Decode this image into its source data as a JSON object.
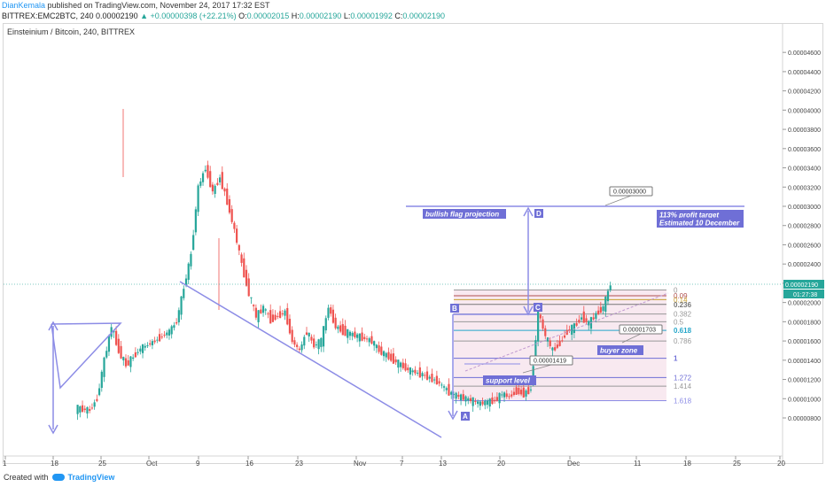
{
  "header": {
    "author": "DianKemala",
    "published": "published on TradingView.com, November 24, 2017 17:32 EST",
    "symbol": "BITTREX:EMC2BTC, 240",
    "last": "0.00002190",
    "change": "▲ +0.00000398 (+22.21%)",
    "o_label": "O:",
    "o_value": "0.00002015",
    "h_label": "H:",
    "h_value": "0.00002190",
    "l_label": "L:",
    "l_value": "0.00001992",
    "c_label": "C:",
    "c_value": "0.00002190"
  },
  "chart_title": "Einsteinium / Bitcoin, 240, BITTREX",
  "footer": {
    "created": "Created with",
    "brand": "TradingView"
  },
  "colors": {
    "up": "#26a69a",
    "down": "#ef5350",
    "drawing": "#8c8ce6",
    "zone": "#f2d7e4",
    "price_line": "#26a69a",
    "label_bg": "#6f6fd6"
  },
  "chart_data": {
    "type": "candlestick",
    "ylim": [
      6.8e-06,
      4.7e-06
    ],
    "y_ticks": [
      "0.00000800",
      "0.00001000",
      "0.00001200",
      "0.00001400",
      "0.00001600",
      "0.00001800",
      "0.00002000",
      "0.00002200",
      "0.00002400",
      "0.00002600",
      "0.00002800",
      "0.00003000",
      "0.00003200",
      "0.00003400",
      "0.00003600",
      "0.00003800",
      "0.00004000",
      "0.00004200",
      "0.00004400",
      "0.00004600"
    ],
    "y_tick_values": [
      8e-06,
      1e-05,
      1.2e-05,
      1.4e-05,
      1.6e-05,
      1.8e-05,
      2e-05,
      2.2e-05,
      2.4e-05,
      2.6e-05,
      2.8e-05,
      3e-05,
      3.2e-05,
      3.4e-05,
      3.6e-05,
      3.8e-05,
      4e-05,
      4.2e-05,
      4.4e-05,
      4.6e-05
    ],
    "x_ticks": [
      "1",
      "18",
      "25",
      "Oct",
      "9",
      "16",
      "23",
      "Nov",
      "7",
      "13",
      "20",
      "Dec",
      "11",
      "18",
      "25",
      "20"
    ],
    "current_price": "0.00002190",
    "countdown": "01:27:38",
    "close_path": [
      [
        "2017-09-11",
        9e-06
      ],
      [
        "2017-09-13",
        8.8e-06
      ],
      [
        "2017-09-14",
        1e-05
      ],
      [
        "2017-09-15",
        1.4e-05
      ],
      [
        "2017-09-16",
        1.75e-05
      ],
      [
        "2017-09-17",
        1.5e-05
      ],
      [
        "2017-09-18",
        1.35e-05
      ],
      [
        "2017-09-20",
        1.52e-05
      ],
      [
        "2017-09-22",
        1.6e-05
      ],
      [
        "2017-09-24",
        1.7e-05
      ],
      [
        "2017-09-25",
        1.8e-05
      ],
      [
        "2017-09-26",
        2.15e-05
      ],
      [
        "2017-09-27",
        2.5e-05
      ],
      [
        "2017-09-28",
        3.2e-05
      ],
      [
        "2017-09-29",
        3.4e-05
      ],
      [
        "2017-09-30",
        3.15e-05
      ],
      [
        "2017-10-01",
        3.3e-05
      ],
      [
        "2017-10-02",
        3.05e-05
      ],
      [
        "2017-10-03",
        2.75e-05
      ],
      [
        "2017-10-04",
        2.4e-05
      ],
      [
        "2017-10-05",
        2.1e-05
      ],
      [
        "2017-10-06",
        1.85e-05
      ],
      [
        "2017-10-07",
        1.95e-05
      ],
      [
        "2017-10-08",
        1.82e-05
      ],
      [
        "2017-10-10",
        1.9e-05
      ],
      [
        "2017-10-11",
        1.6e-05
      ],
      [
        "2017-10-12",
        1.5e-05
      ],
      [
        "2017-10-13",
        1.7e-05
      ],
      [
        "2017-10-14",
        1.55e-05
      ],
      [
        "2017-10-15",
        1.6e-05
      ],
      [
        "2017-10-16",
        1.95e-05
      ],
      [
        "2017-10-17",
        1.75e-05
      ],
      [
        "2017-10-18",
        1.7e-05
      ],
      [
        "2017-10-20",
        1.65e-05
      ],
      [
        "2017-10-22",
        1.6e-05
      ],
      [
        "2017-10-23",
        1.5e-05
      ],
      [
        "2017-10-25",
        1.4e-05
      ],
      [
        "2017-10-27",
        1.3e-05
      ],
      [
        "2017-10-29",
        1.25e-05
      ],
      [
        "2017-10-31",
        1.18e-05
      ],
      [
        "2017-11-02",
        1.05e-05
      ],
      [
        "2017-11-04",
        1e-05
      ],
      [
        "2017-11-06",
        9.5e-06
      ],
      [
        "2017-11-08",
        9.8e-06
      ],
      [
        "2017-11-09",
        1.05e-05
      ],
      [
        "2017-11-10",
        1.02e-05
      ],
      [
        "2017-11-11",
        1.08e-05
      ],
      [
        "2017-11-12",
        1.05e-05
      ],
      [
        "2017-11-13",
        1.1e-05
      ],
      [
        "2017-11-14",
        1.9e-05
      ],
      [
        "2017-11-15",
        1.65e-05
      ],
      [
        "2017-11-16",
        1.5e-05
      ],
      [
        "2017-11-17",
        1.58e-05
      ],
      [
        "2017-11-18",
        1.7e-05
      ],
      [
        "2017-11-19",
        1.75e-05
      ],
      [
        "2017-11-20",
        1.85e-05
      ],
      [
        "2017-11-21",
        1.78e-05
      ],
      [
        "2017-11-22",
        1.88e-05
      ],
      [
        "2017-11-23",
        1.95e-05
      ],
      [
        "2017-11-24",
        2.19e-05
      ]
    ],
    "fib_levels": [
      {
        "label": "0",
        "value": 2.13e-05
      },
      {
        "label": "0.09",
        "value": 2.07e-05
      },
      {
        "label": "0.14",
        "value": 2.03e-05
      },
      {
        "label": "0.236",
        "value": 1.98e-05
      },
      {
        "label": "0.382",
        "value": 1.88e-05
      },
      {
        "label": "0.5",
        "value": 1.8e-05
      },
      {
        "label": "0.618",
        "value": 1.71e-05
      },
      {
        "label": "0.786",
        "value": 1.6e-05
      },
      {
        "label": "1",
        "value": 1.42e-05
      },
      {
        "label": "1.272",
        "value": 1.22e-05
      },
      {
        "label": "1.414",
        "value": 1.13e-05
      },
      {
        "label": "1.618",
        "value": 9.8e-06
      }
    ],
    "annotations": {
      "flag_projection": "bullish flag projection",
      "profit_target_1": "113% profit target",
      "profit_target_2": "Estimated 10 December",
      "target_price": "0.00003000",
      "buyer_price": "0.00001703",
      "buyer_zone": "buyer zone",
      "support_price": "0.00001419",
      "support_level": "support level",
      "point_a": "A",
      "point_b": "B",
      "point_c": "C",
      "point_d": "D"
    }
  }
}
